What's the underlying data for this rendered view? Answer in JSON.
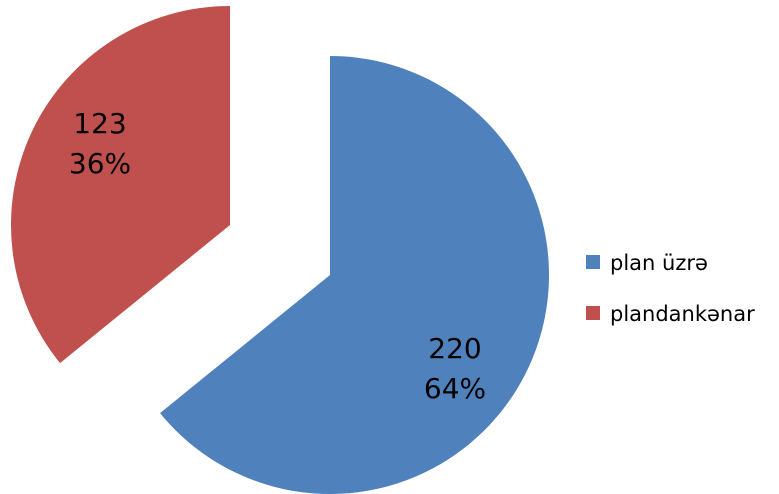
{
  "chart_data": {
    "type": "pie",
    "title": "",
    "categories": [
      "plan üzrə",
      "plandankənar"
    ],
    "values": [
      220,
      123
    ],
    "percent_labels": [
      "64%",
      "36%"
    ],
    "colors": [
      "#4F81BD",
      "#C0504D"
    ],
    "exploded": true,
    "legend": "right"
  }
}
